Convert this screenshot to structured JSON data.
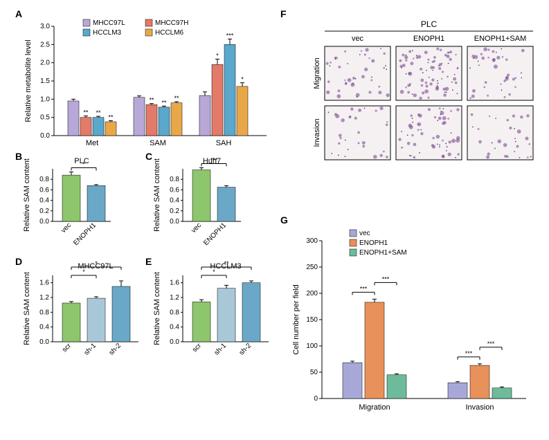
{
  "colors": {
    "mhcc97l": "#b8a8d8",
    "mhcc97h": "#e47a6a",
    "hcclm3": "#5aa8cc",
    "hcclm6": "#e8a84a",
    "vec_green": "#8dc66d",
    "enoph1_blue": "#6ba8c8",
    "scr_green": "#8dc66d",
    "sh_blue1": "#a8c8d8",
    "sh_blue2": "#6ba8c8",
    "g_vec": "#a8a8d8",
    "g_enoph1": "#e8915a",
    "g_sam": "#6dbb9a"
  },
  "panelA": {
    "ylabel": "Relative metabolite level",
    "ylim": [
      0,
      3.0
    ],
    "yticks": [
      0,
      0.5,
      1.0,
      1.5,
      2.0,
      2.5,
      3.0
    ],
    "legend": [
      "MHCC97L",
      "MHCC97H",
      "HCCLM3",
      "HCCLM6"
    ],
    "groups": [
      "Met",
      "SAM",
      "SAH"
    ],
    "data": {
      "Met": [
        {
          "v": 0.95,
          "e": 0.05,
          "s": ""
        },
        {
          "v": 0.5,
          "e": 0.04,
          "s": "**"
        },
        {
          "v": 0.5,
          "e": 0.03,
          "s": "**"
        },
        {
          "v": 0.38,
          "e": 0.03,
          "s": "**"
        }
      ],
      "SAM": [
        {
          "v": 1.05,
          "e": 0.04,
          "s": ""
        },
        {
          "v": 0.85,
          "e": 0.03,
          "s": "**"
        },
        {
          "v": 0.78,
          "e": 0.03,
          "s": "**"
        },
        {
          "v": 0.9,
          "e": 0.03,
          "s": "**"
        }
      ],
      "SAH": [
        {
          "v": 1.1,
          "e": 0.1,
          "s": ""
        },
        {
          "v": 1.95,
          "e": 0.15,
          "s": "*"
        },
        {
          "v": 2.5,
          "e": 0.15,
          "s": "***"
        },
        {
          "v": 1.35,
          "e": 0.1,
          "s": "*"
        }
      ]
    }
  },
  "panelB": {
    "title": "PLC",
    "ylabel": "Relative SAM content",
    "ylim": [
      0,
      1.0
    ],
    "yticks": [
      0,
      0.2,
      0.4,
      0.6,
      0.8
    ],
    "cats": [
      "vec",
      "ENOPH1"
    ],
    "vals": [
      {
        "v": 0.88,
        "e": 0.06
      },
      {
        "v": 0.68,
        "e": 0.02
      }
    ],
    "sig": "*"
  },
  "panelC": {
    "title": "Huh7",
    "ylabel": "Relative SAM content",
    "ylim": [
      0,
      1.0
    ],
    "yticks": [
      0,
      0.2,
      0.4,
      0.6,
      0.8
    ],
    "cats": [
      "vec",
      "ENOPH1"
    ],
    "vals": [
      {
        "v": 0.98,
        "e": 0.04
      },
      {
        "v": 0.65,
        "e": 0.03
      }
    ],
    "sig": "***"
  },
  "panelD": {
    "title": "MHCC97L",
    "ylabel": "Relative SAM content",
    "ylim": [
      0,
      1.8
    ],
    "yticks": [
      0,
      0.4,
      0.8,
      1.2,
      1.6
    ],
    "cats": [
      "scr",
      "sh-1",
      "sh-2"
    ],
    "vals": [
      {
        "v": 1.05,
        "e": 0.04
      },
      {
        "v": 1.18,
        "e": 0.04
      },
      {
        "v": 1.5,
        "e": 0.15
      }
    ],
    "sigs": [
      {
        "from": 0,
        "to": 1,
        "label": "*"
      },
      {
        "from": 0,
        "to": 2,
        "label": "*"
      }
    ]
  },
  "panelE": {
    "title": "HCCLM3",
    "ylabel": "Relative SAM content",
    "ylim": [
      0,
      1.8
    ],
    "yticks": [
      0,
      0.4,
      0.8,
      1.2,
      1.6
    ],
    "cats": [
      "scr",
      "sh-1",
      "sh-2"
    ],
    "vals": [
      {
        "v": 1.08,
        "e": 0.06
      },
      {
        "v": 1.45,
        "e": 0.08
      },
      {
        "v": 1.6,
        "e": 0.05
      }
    ],
    "sigs": [
      {
        "from": 0,
        "to": 1,
        "label": "*"
      },
      {
        "from": 0,
        "to": 2,
        "label": "**"
      }
    ]
  },
  "panelF": {
    "title": "PLC",
    "cols": [
      "vec",
      "ENOPH1",
      "ENOPH1+SAM"
    ],
    "rows": [
      "Migration",
      "Invasion"
    ]
  },
  "panelG": {
    "ylabel": "Cell number per field",
    "ylim": [
      0,
      300
    ],
    "yticks": [
      0,
      50,
      100,
      150,
      200,
      250,
      300
    ],
    "legend": [
      "vec",
      "ENOPH1",
      "ENOPH1+SAM"
    ],
    "groups": [
      "Migration",
      "Invasion"
    ],
    "data": {
      "Migration": [
        {
          "v": 68,
          "e": 3
        },
        {
          "v": 183,
          "e": 6
        },
        {
          "v": 45,
          "e": 2
        }
      ],
      "Invasion": [
        {
          "v": 30,
          "e": 2
        },
        {
          "v": 63,
          "e": 3
        },
        {
          "v": 20,
          "e": 2
        }
      ]
    },
    "sigs": {
      "Migration": [
        {
          "from": 0,
          "to": 1,
          "label": "***"
        },
        {
          "from": 1,
          "to": 2,
          "label": "***"
        }
      ],
      "Invasion": [
        {
          "from": 0,
          "to": 1,
          "label": "***"
        },
        {
          "from": 1,
          "to": 2,
          "label": "***"
        }
      ]
    }
  },
  "labels": {
    "A": "A",
    "B": "B",
    "C": "C",
    "D": "D",
    "E": "E",
    "F": "F",
    "G": "G"
  }
}
